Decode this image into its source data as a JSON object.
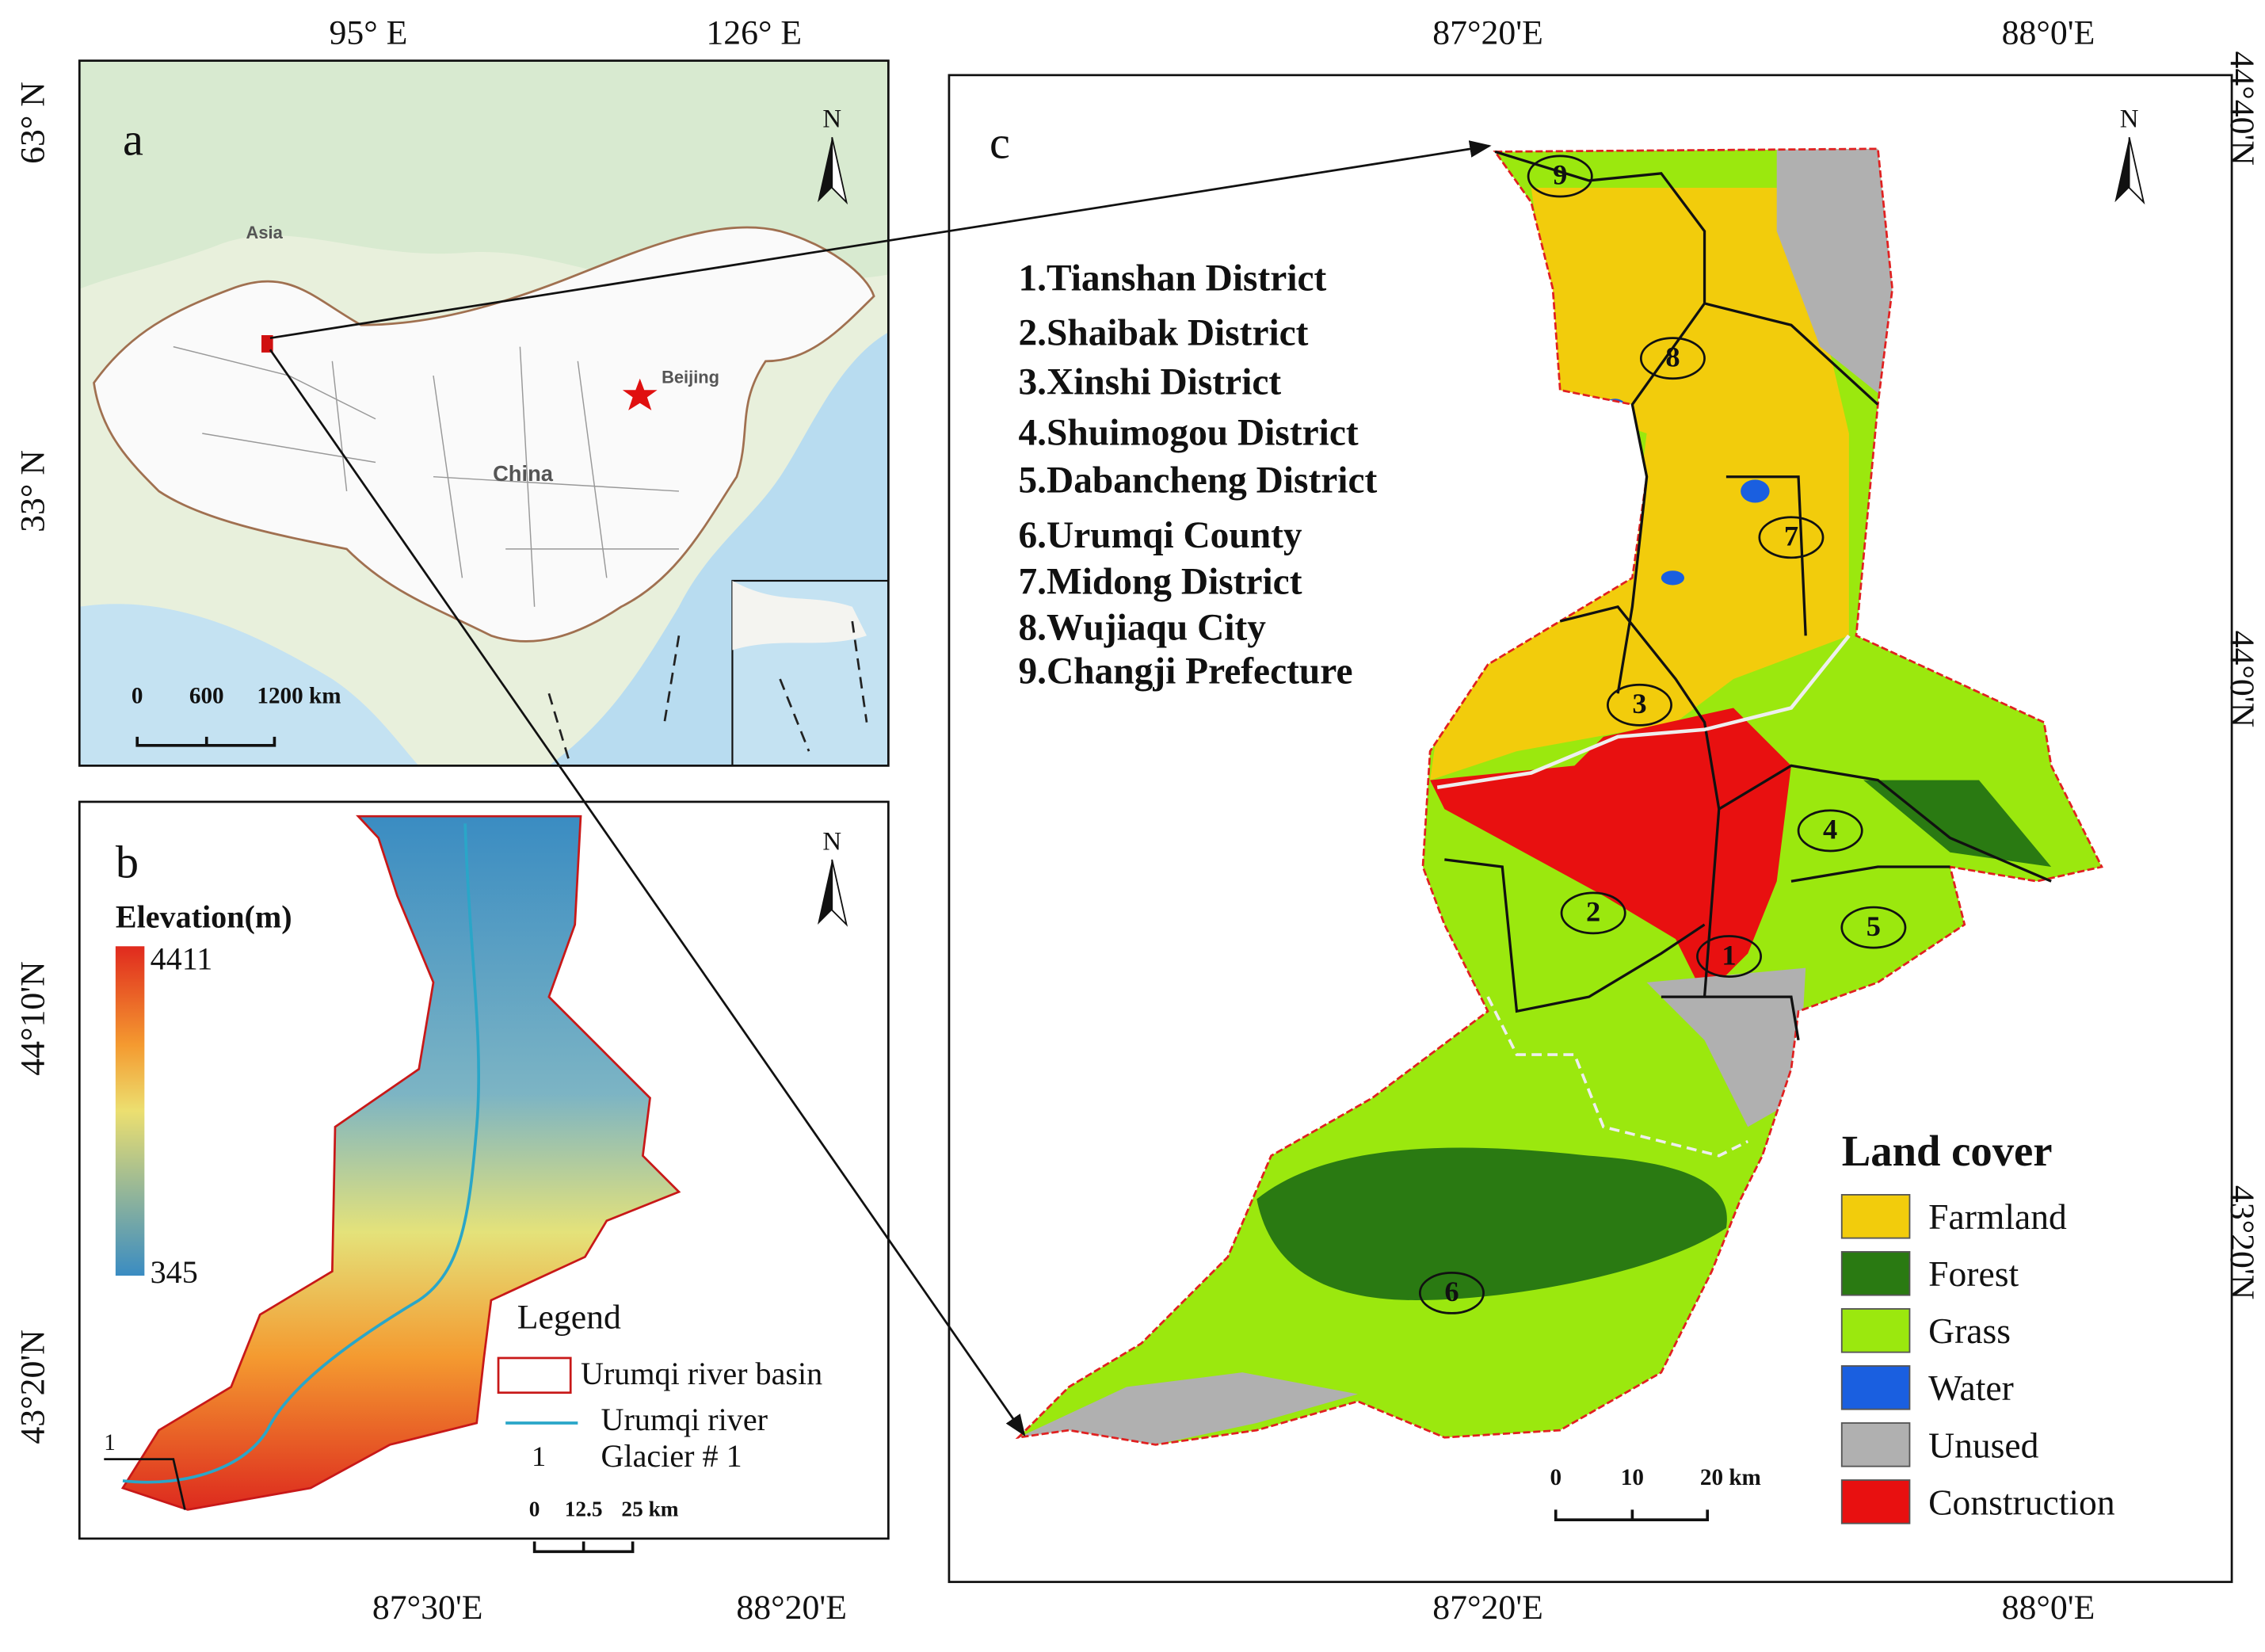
{
  "panel_a": {
    "label": "a",
    "top_labels": [
      "95° E",
      "126° E"
    ],
    "left_labels": [
      "63° N",
      "33° N"
    ],
    "places": [
      "Asia",
      "Beijing",
      "China"
    ],
    "scale": [
      "0",
      "600",
      "1200 km"
    ],
    "north": "N"
  },
  "panel_b": {
    "label": "b",
    "elevation_title": "Elevation(m)",
    "elevation_max": 4411,
    "elevation_min": 345,
    "legend_title": "Legend",
    "legend": [
      "Urumqi river basin",
      "Urumqi river",
      "Glacier # 1"
    ],
    "glacier_marker": "1",
    "scale": [
      "0",
      "12.5",
      "25 km"
    ],
    "left_labels": [
      "44°10'N",
      "43°20'N"
    ],
    "bottom_labels": [
      "87°30'E",
      "88°20'E"
    ],
    "north": "N"
  },
  "panel_c": {
    "label": "c",
    "top_labels": [
      "87°20'E",
      "88°0'E"
    ],
    "bottom_labels": [
      "87°20'E",
      "88°0'E"
    ],
    "right_labels": [
      "44°40'N",
      "44°0'N",
      "43°20'N"
    ],
    "districts": [
      "1.Tianshan District",
      "2.Shaibak District",
      "3.Xinshi District",
      "4.Shuimogou District",
      "5.Dabancheng  District",
      "6.Urumqi County",
      "7.Midong District",
      "8.Wujiaqu City",
      "9.Changji Prefecture"
    ],
    "district_numbers": [
      "1",
      "2",
      "3",
      "4",
      "5",
      "6",
      "7",
      "8",
      "9"
    ],
    "land_cover_title": "Land cover",
    "land_cover": [
      {
        "name": "Farmland",
        "color": "#f2cc0c"
      },
      {
        "name": "Forest",
        "color": "#2a7a12"
      },
      {
        "name": "Grass",
        "color": "#9be80e"
      },
      {
        "name": "Water",
        "color": "#1a5fe0"
      },
      {
        "name": "Unused",
        "color": "#b0b0b0"
      },
      {
        "name": "Construction",
        "color": "#e81010"
      }
    ],
    "scale": [
      "0",
      "10",
      "20 km"
    ],
    "north": "N"
  }
}
